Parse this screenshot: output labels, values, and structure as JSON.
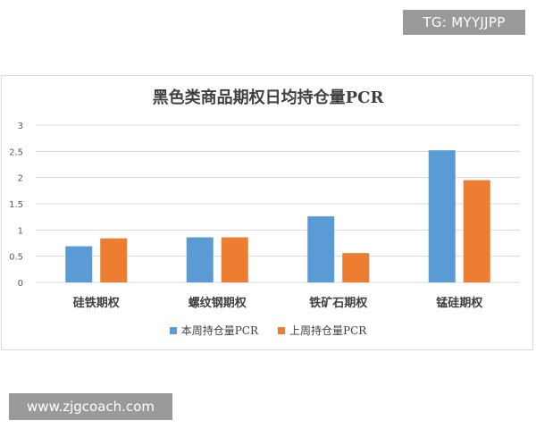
{
  "watermarks": {
    "tg": "TG: MYYJJPP",
    "site": "www.zjgcoach.com"
  },
  "colors": {
    "series1": "#5b9bd5",
    "series2": "#ed7d31",
    "grid": "#d9d9d9",
    "text": "#595959"
  },
  "chart_data": {
    "type": "bar",
    "title": "黑色类商品期权日均持仓量PCR",
    "xlabel": "",
    "ylabel": "",
    "categories": [
      "硅铁期权",
      "螺纹钢期权",
      "铁矿石期权",
      "锰硅期权"
    ],
    "series": [
      {
        "name": "本周持仓量PCR",
        "values": [
          0.69,
          0.86,
          1.26,
          2.52
        ]
      },
      {
        "name": "上周持仓量PCR",
        "values": [
          0.84,
          0.86,
          0.56,
          1.95
        ]
      }
    ],
    "ylim": [
      0,
      3
    ],
    "yticks": [
      "0",
      "0.5",
      "1",
      "1.5",
      "2",
      "2.5",
      "3"
    ],
    "grid": true,
    "legend_position": "bottom"
  }
}
